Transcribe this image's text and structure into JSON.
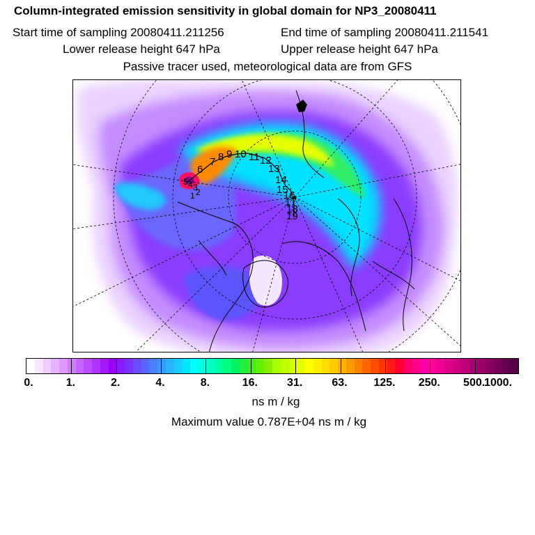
{
  "title": "Column-integrated emission sensitivity in global domain for NP3_20080411",
  "start_time": "Start time of sampling 20080411.211256",
  "end_time": "End time of sampling 20080411.211541",
  "lower_release": "Lower release height  647 hPa",
  "upper_release": "Upper release height  647 hPa",
  "tracer_note": "Passive tracer used, meteorological data are from GFS",
  "map": {
    "track_labels": [
      "6",
      "7",
      "8",
      "9",
      "10",
      "11",
      "12",
      "13",
      "14",
      "15",
      "16",
      "17",
      "18",
      "19"
    ],
    "track_start_labels": [
      "5",
      "4",
      "3",
      "2",
      "1"
    ]
  },
  "colorbar": {
    "colors": [
      "#ffffff",
      "#f7e6ff",
      "#efccff",
      "#e6b3ff",
      "#dd99ff",
      "#d27fff",
      "#c666ff",
      "#bb4dff",
      "#b033ff",
      "#a31aff",
      "#9900ff",
      "#8a1aff",
      "#7a33ff",
      "#6a4dff",
      "#5a66ff",
      "#4a80ff",
      "#3a99ff",
      "#2ab3ff",
      "#1accff",
      "#00e6ff",
      "#00ffff",
      "#00ffe0",
      "#00ffc0",
      "#00ffa0",
      "#00ff80",
      "#00f060",
      "#20ee40",
      "#40ee20",
      "#66ee00",
      "#88ee00",
      "#aaff00",
      "#c0ff00",
      "#d4ff00",
      "#e8ff00",
      "#ffff00",
      "#ffee00",
      "#ffdd00",
      "#ffcc00",
      "#ffb300",
      "#ff9900",
      "#ff8000",
      "#ff6600",
      "#ff4d00",
      "#ff3300",
      "#ff1a1a",
      "#ff0033",
      "#ff0066",
      "#ff0088",
      "#ff00aa",
      "#ff0099",
      "#ee0090",
      "#dd0088",
      "#cc0080",
      "#bb0078",
      "#aa0070",
      "#990068",
      "#880060",
      "#770058",
      "#660050",
      "#550048"
    ],
    "tick_labels": [
      "0.",
      "1.",
      "2.",
      "4.",
      "8.",
      "16.",
      "31.",
      "63.",
      "125.",
      "250.",
      "500.",
      "1000."
    ]
  },
  "unit": "ns m / kg",
  "max_value": "Maximum value  0.787E+04 ns m / kg"
}
